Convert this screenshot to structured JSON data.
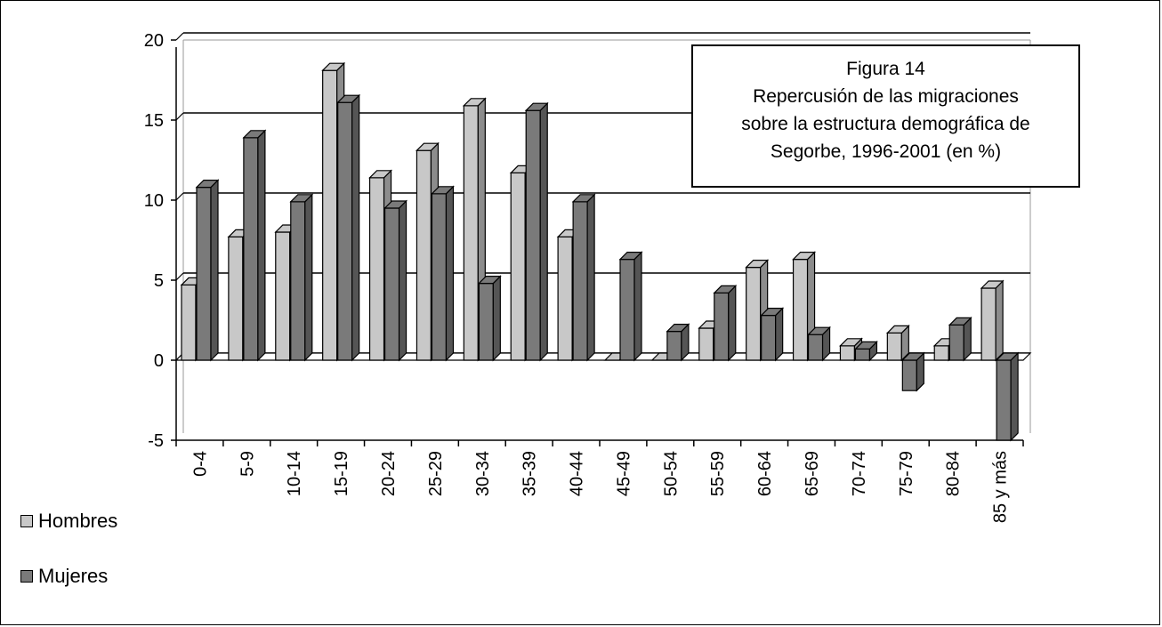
{
  "chart_data": {
    "type": "bar",
    "style": "3d-clustered-column",
    "title_lines": [
      "Figura 14",
      "Repercusión de las migraciones",
      "sobre la estructura demográfica de",
      "Segorbe, 1996-2001 (en %)"
    ],
    "categories": [
      "0-4",
      "5-9",
      "10-14",
      "15-19",
      "20-24",
      "25-29",
      "30-34",
      "35-39",
      "40-44",
      "45-49",
      "50-54",
      "55-59",
      "60-64",
      "65-69",
      "70-74",
      "75-79",
      "80-84",
      "85 y más"
    ],
    "series": [
      {
        "name": "Hombres",
        "color": "#c8c8c8",
        "values": [
          4.7,
          7.7,
          8.0,
          18.1,
          11.4,
          13.1,
          15.9,
          11.7,
          7.7,
          0.0,
          0.0,
          2.0,
          5.8,
          6.3,
          0.9,
          1.7,
          0.9,
          4.5
        ]
      },
      {
        "name": "Mujeres",
        "color": "#7a7a7a",
        "values": [
          10.8,
          13.9,
          9.9,
          16.1,
          9.5,
          10.4,
          4.8,
          15.6,
          9.9,
          6.3,
          1.8,
          4.2,
          2.8,
          1.6,
          0.7,
          -1.9,
          2.2,
          -5.0
        ]
      }
    ],
    "ylim": [
      -5,
      20
    ],
    "yticks": [
      "20",
      "15",
      "10",
      "5",
      "0",
      "-5"
    ],
    "grid": true,
    "legend_position": "bottom-left",
    "xlabel": "",
    "ylabel": ""
  }
}
